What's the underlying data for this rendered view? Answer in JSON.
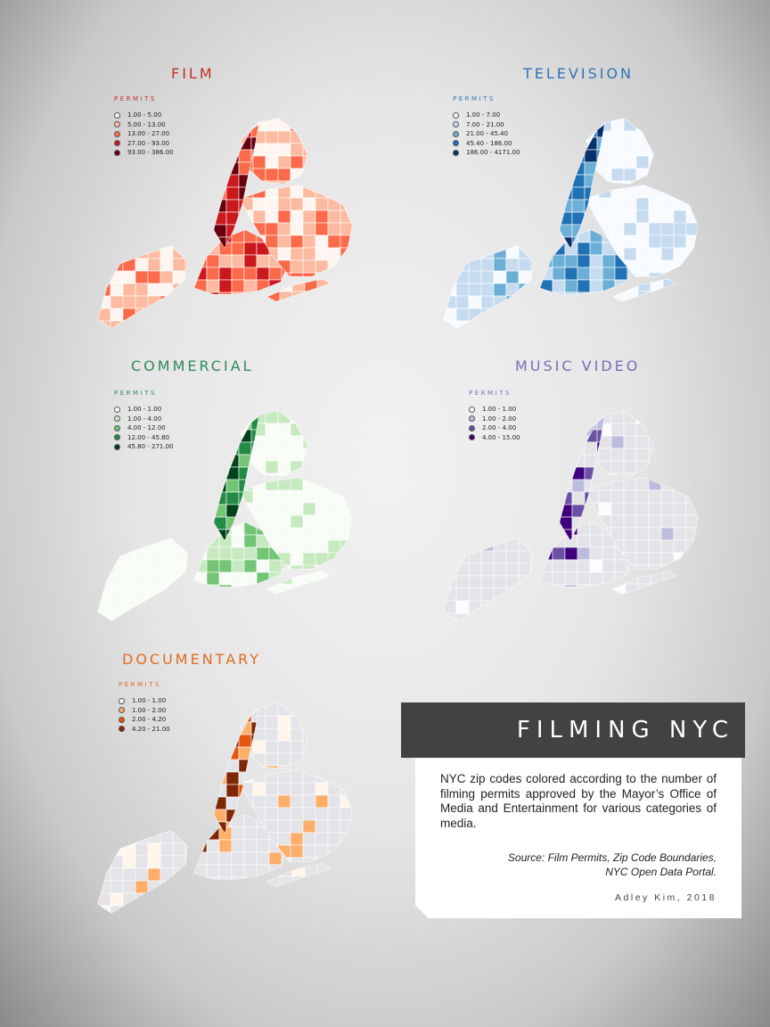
{
  "panels": [
    {
      "key": "film",
      "title": "FILM",
      "title_color": "#c0302a",
      "legend_heading": "PERMITS",
      "legend": [
        {
          "label": "1.00 - 5.00",
          "color": "#fff5f0"
        },
        {
          "label": "5.00 - 13.00",
          "color": "#fcbba1"
        },
        {
          "label": "13.00 - 27.00",
          "color": "#fb6a4a"
        },
        {
          "label": "27.00 - 93.00",
          "color": "#cb181d"
        },
        {
          "label": "93.00 - 386.00",
          "color": "#67000d"
        }
      ]
    },
    {
      "key": "television",
      "title": "TELEVISION",
      "title_color": "#2e74b5",
      "legend_heading": "PERMITS",
      "legend": [
        {
          "label": "1.00 - 7.00",
          "color": "#f7fbff"
        },
        {
          "label": "7.00 - 21.00",
          "color": "#c6dbef"
        },
        {
          "label": "21.00 - 45.40",
          "color": "#6baed6"
        },
        {
          "label": "45.40 - 186.00",
          "color": "#2171b5"
        },
        {
          "label": "186.00 - 4171.00",
          "color": "#08306b"
        }
      ]
    },
    {
      "key": "commercial",
      "title": "COMMERCIAL",
      "title_color": "#2e8b57",
      "legend_heading": "PERMITS",
      "legend": [
        {
          "label": "1.00 - 1.00",
          "color": "#f7fcf5"
        },
        {
          "label": "1.00 - 4.00",
          "color": "#c7e9c0"
        },
        {
          "label": "4.00 - 12.00",
          "color": "#74c476"
        },
        {
          "label": "12.00 - 45.80",
          "color": "#238b45"
        },
        {
          "label": "45.80 - 271.00",
          "color": "#00441b"
        }
      ]
    },
    {
      "key": "music_video",
      "title": "MUSIC VIDEO",
      "title_color": "#7b6bb8",
      "legend_heading": "PERMITS",
      "legend": [
        {
          "label": "1.00 - 1.00",
          "color": "#fcfbfd"
        },
        {
          "label": "1.00 - 2.00",
          "color": "#bcbddc"
        },
        {
          "label": "2.00 - 4.00",
          "color": "#6a51a3"
        },
        {
          "label": "4.00 - 15.00",
          "color": "#3f007d"
        }
      ]
    },
    {
      "key": "documentary",
      "title": "DOCUMENTARY",
      "title_color": "#e06b22",
      "legend_heading": "PERMITS",
      "legend": [
        {
          "label": "1.00 - 1.00",
          "color": "#fff5eb"
        },
        {
          "label": "1.00 - 2.00",
          "color": "#fdae6b"
        },
        {
          "label": "2.00 - 4.20",
          "color": "#e6550d"
        },
        {
          "label": "4.20 - 21.00",
          "color": "#7f2704"
        }
      ]
    }
  ],
  "info": {
    "banner_title": "FILMING NYC",
    "description": "NYC zip codes colored according to the number of filming permits approved by the Mayor’s Office of Media and Entertainment for various categories of media.",
    "source_line1": "Source: Film Permits, Zip Code Boundaries,",
    "source_line2": "NYC Open Data Portal.",
    "credit": "Adley Kim, 2018"
  },
  "base_color": "#e3e3e8"
}
